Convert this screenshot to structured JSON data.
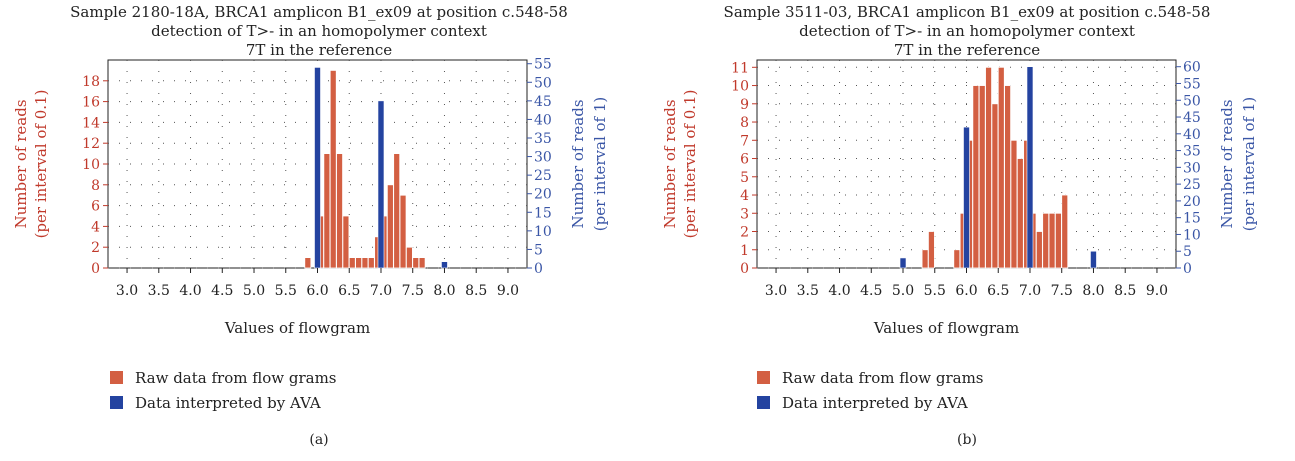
{
  "chart_data": [
    {
      "type": "bar",
      "panel_label": "(a)",
      "title": "Sample 2180-18A, BRCA1 amplicon B1_ex09 at position c.548-58",
      "subtitle_1": "detection of T>- in an homopolymer context",
      "subtitle_2": "7T in the reference",
      "xlabel": "Values of flowgram",
      "ylabel_left_1": "Number of reads",
      "ylabel_left_2": "(per interval of 0.1)",
      "ylabel_right_1": "Number of reads",
      "ylabel_right_2": "(per interval of 1)",
      "xlim": [
        2.7,
        9.3
      ],
      "ylim_left": [
        0,
        20
      ],
      "ylim_right": [
        0,
        56
      ],
      "x_ticks": [
        "3.0",
        "3.5",
        "4.0",
        "4.5",
        "5.0",
        "5.5",
        "6.0",
        "6.5",
        "7.0",
        "7.5",
        "8.0",
        "8.5",
        "9.0"
      ],
      "y_ticks_left": [
        "0",
        "2",
        "4",
        "6",
        "8",
        "10",
        "12",
        "14",
        "16",
        "18"
      ],
      "y_ticks_right": [
        "0",
        "5",
        "10",
        "15",
        "20",
        "25",
        "30",
        "35",
        "40",
        "45",
        "50",
        "55"
      ],
      "series": [
        {
          "name": "Raw data from flow grams",
          "axis": "left",
          "x": [
            5.8,
            5.9,
            6.0,
            6.1,
            6.2,
            6.3,
            6.4,
            6.5,
            6.6,
            6.7,
            6.8,
            6.9,
            7.0,
            7.1,
            7.2,
            7.3,
            7.4,
            7.5,
            7.6
          ],
          "values": [
            1,
            0,
            5,
            11,
            19,
            11,
            5,
            1,
            1,
            1,
            1,
            3,
            5,
            8,
            11,
            7,
            2,
            1,
            1
          ]
        },
        {
          "name": "Data interpreted by AVA",
          "axis": "right",
          "x": [
            6.0,
            7.0,
            8.0
          ],
          "values": [
            54,
            45,
            1.7
          ]
        }
      ],
      "legend": "bottom-left",
      "grid": true
    },
    {
      "type": "bar",
      "panel_label": "(b)",
      "title": "Sample 3511-03, BRCA1 amplicon B1_ex09 at position c.548-58",
      "subtitle_1": "detection of T>- in an homopolymer context",
      "subtitle_2": "7T in the reference",
      "xlabel": "Values of flowgram",
      "ylabel_left_1": "Number of reads",
      "ylabel_left_2": "(per interval of 0.1)",
      "ylabel_right_1": "Number of reads",
      "ylabel_right_2": "(per interval of 1)",
      "xlim": [
        2.7,
        9.3
      ],
      "ylim_left": [
        0,
        11.4
      ],
      "ylim_right": [
        0,
        62
      ],
      "x_ticks": [
        "3.0",
        "3.5",
        "4.0",
        "4.5",
        "5.0",
        "5.5",
        "6.0",
        "6.5",
        "7.0",
        "7.5",
        "8.0",
        "8.5",
        "9.0"
      ],
      "y_ticks_left": [
        "0",
        "1",
        "2",
        "3",
        "4",
        "5",
        "6",
        "7",
        "8",
        "9",
        "10",
        "11"
      ],
      "y_ticks_right": [
        "0",
        "5",
        "10",
        "15",
        "20",
        "25",
        "30",
        "35",
        "40",
        "45",
        "50",
        "55",
        "60"
      ],
      "series": [
        {
          "name": "Raw data from flow grams",
          "axis": "left",
          "x": [
            5.3,
            5.4,
            5.8,
            5.9,
            6.0,
            6.1,
            6.2,
            6.3,
            6.4,
            6.5,
            6.6,
            6.7,
            6.8,
            6.9,
            7.0,
            7.1,
            7.2,
            7.3,
            7.4,
            7.5
          ],
          "values": [
            1,
            2,
            1,
            3,
            7,
            10,
            10,
            11,
            9,
            11,
            10,
            7,
            6,
            7,
            3,
            2,
            3,
            3,
            3,
            4
          ]
        },
        {
          "name": "Data interpreted by AVA",
          "axis": "right",
          "x": [
            5.0,
            6.0,
            7.0,
            8.0
          ],
          "values": [
            3,
            42,
            60,
            5
          ]
        }
      ],
      "legend": "bottom-left",
      "grid": true
    }
  ],
  "colors": {
    "raw": "#d35f42",
    "ava": "#2443a0",
    "left_axis": "#c0392b",
    "right_axis": "#3a56a6"
  }
}
